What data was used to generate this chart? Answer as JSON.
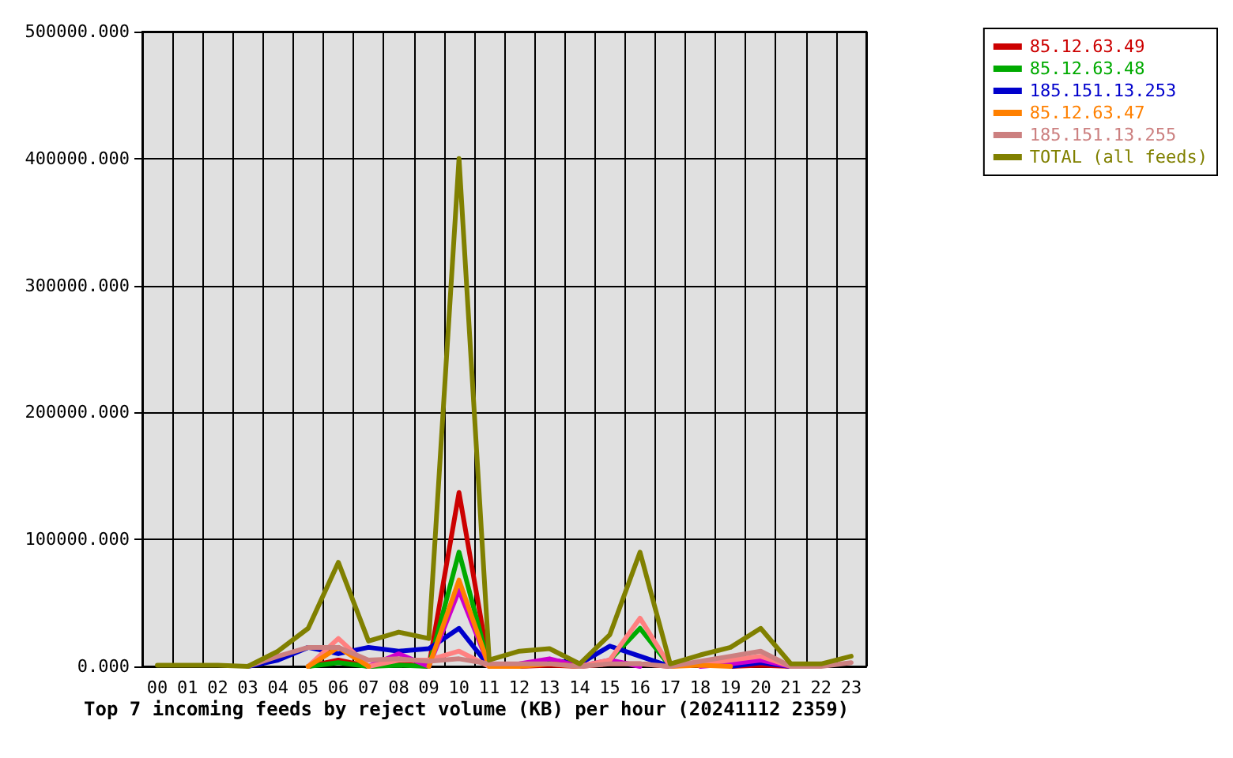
{
  "chart_data": {
    "type": "line",
    "title": "Top 7 incoming feeds by reject volume (KB) per hour (20241112 2359)",
    "categories": [
      "00",
      "01",
      "02",
      "03",
      "04",
      "05",
      "06",
      "07",
      "08",
      "09",
      "10",
      "11",
      "12",
      "13",
      "14",
      "15",
      "16",
      "17",
      "18",
      "19",
      "20",
      "21",
      "22",
      "23"
    ],
    "series": [
      {
        "name": "85.12.63.49",
        "color": "#cc0000",
        "values": [
          null,
          null,
          null,
          null,
          null,
          0,
          5000,
          0,
          2000,
          0,
          137000,
          0,
          0,
          1000,
          0,
          2000,
          2000,
          0,
          null,
          0,
          1000,
          0,
          null,
          null
        ]
      },
      {
        "name": "85.12.63.48",
        "color": "#00aa00",
        "values": [
          null,
          null,
          null,
          null,
          null,
          0,
          3000,
          0,
          1000,
          0,
          90000,
          0,
          null,
          null,
          null,
          5000,
          30000,
          0,
          null,
          null,
          null,
          null,
          null,
          null
        ]
      },
      {
        "name": "185.151.13.253",
        "color": "#0000cc",
        "values": [
          null,
          null,
          null,
          0,
          5000,
          15000,
          10000,
          15000,
          12000,
          14000,
          30000,
          0,
          0,
          5000,
          2000,
          16000,
          8000,
          0,
          null,
          0,
          3000,
          0,
          null,
          null
        ]
      },
      {
        "color": "#cc00cc",
        "values": [
          null,
          null,
          null,
          null,
          null,
          null,
          null,
          0,
          10000,
          0,
          60000,
          0,
          2000,
          6000,
          0,
          5000,
          0,
          null,
          0,
          2000,
          5000,
          0,
          null,
          null
        ]
      },
      {
        "color": "#ff8080",
        "values": [
          null,
          null,
          null,
          null,
          null,
          0,
          22000,
          0,
          5000,
          5000,
          12000,
          0,
          null,
          null,
          0,
          5000,
          38000,
          0,
          2000,
          5000,
          8000,
          0,
          null,
          null
        ]
      },
      {
        "name": "85.12.63.47",
        "color": "#ff8000",
        "values": [
          null,
          null,
          null,
          null,
          null,
          0,
          15000,
          0,
          null,
          0,
          68000,
          0,
          0,
          2000,
          0,
          null,
          null,
          0,
          1000,
          0,
          null,
          null,
          null,
          null
        ]
      },
      {
        "name": "185.151.13.255",
        "color": "#cc8080",
        "values": [
          null,
          null,
          null,
          0,
          8000,
          15000,
          15000,
          5000,
          6000,
          4000,
          6000,
          2000,
          2000,
          2000,
          0,
          2000,
          2000,
          0,
          4000,
          8000,
          12000,
          0,
          0,
          3000
        ]
      },
      {
        "name": "TOTAL (all feeds)",
        "color": "#808000",
        "values": [
          1000,
          1000,
          1000,
          0,
          12000,
          30000,
          82000,
          20000,
          27000,
          22000,
          400000,
          5000,
          12000,
          14000,
          2000,
          25000,
          90000,
          2000,
          9000,
          15000,
          30000,
          2000,
          2000,
          8000
        ]
      }
    ],
    "ylim": [
      0,
      500000
    ],
    "yticks": [
      {
        "value": 0,
        "label": "0.000"
      },
      {
        "value": 100000,
        "label": "100000.000"
      },
      {
        "value": 200000,
        "label": "200000.000"
      },
      {
        "value": 300000,
        "label": "300000.000"
      },
      {
        "value": 400000,
        "label": "400000.000"
      },
      {
        "value": 500000,
        "label": "500000.000"
      }
    ],
    "grid": true,
    "legend": "top right",
    "marker": "none",
    "line_style": "solid"
  }
}
